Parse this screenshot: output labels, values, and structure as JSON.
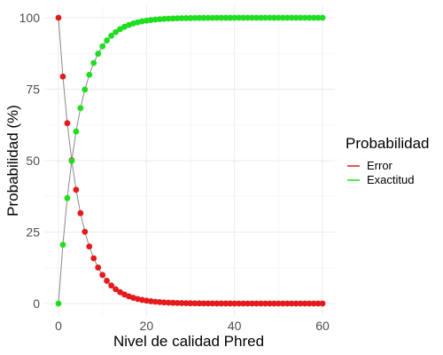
{
  "chart_data": {
    "type": "line",
    "xlabel": "Nivel de calidad Phred",
    "ylabel": "Probabilidad (%)",
    "xlim": [
      0,
      60
    ],
    "ylim": [
      0,
      100
    ],
    "x_ticks": [
      0,
      20,
      40,
      60
    ],
    "y_ticks": [
      0,
      25,
      50,
      75,
      100
    ],
    "grid": true,
    "legend": {
      "title": "Probabilidad",
      "placement": "right",
      "entries": [
        {
          "name": "Error",
          "color": "#e41a1c"
        },
        {
          "name": "Exactitud",
          "color": "#1ede1e"
        }
      ]
    },
    "x_range": {
      "start": 0,
      "end": 60,
      "step": 1
    },
    "series": [
      {
        "name": "Error",
        "color": "#e41a1c",
        "formula": "10^(-x/10) * 100"
      },
      {
        "name": "Exactitud",
        "color": "#1ede1e",
        "formula": "100 - 10^(-x/10) * 100"
      }
    ],
    "line_color": "#888888"
  }
}
